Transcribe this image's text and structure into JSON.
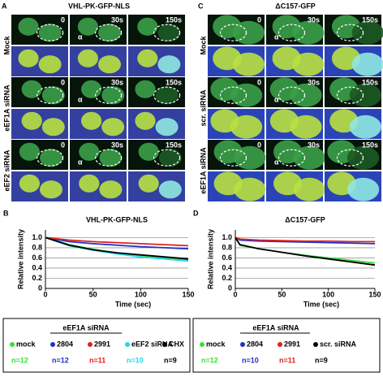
{
  "panels": [
    {
      "label": "A",
      "title": "VHL-PK-GFP-NLS",
      "times": [
        "0",
        "30s",
        "150s"
      ],
      "rows": [
        "Mock",
        "eEF1A siRNA",
        "eEF2 siRNA"
      ],
      "marker": "α"
    },
    {
      "label": "C",
      "title": "ΔC157-GFP",
      "times": [
        "0",
        "30s",
        "150s"
      ],
      "rows": [
        "Mock",
        "scr. siRNA",
        "eEF1A siRNA"
      ],
      "marker": "α"
    }
  ],
  "chart_data": [
    {
      "label": "B",
      "type": "line",
      "title": "VHL-PK-GFP-NLS",
      "x_label": "Time (sec)",
      "y_label": "Relative intensity",
      "x": [
        0,
        25,
        50,
        75,
        100,
        125,
        150
      ],
      "xlim": [
        0,
        150
      ],
      "xticks": [
        0,
        50,
        100,
        150
      ],
      "ylim": [
        0,
        1.15
      ],
      "yticks": [
        0,
        0.2,
        0.4,
        0.6,
        0.8,
        {
          "value": 1,
          "label": "1.0"
        }
      ],
      "grid": true,
      "legend_group": "eEF1A siRNA",
      "series": [
        {
          "name": "mock",
          "color": "#3ddc3d",
          "n_label": "n=12",
          "values": [
            1.0,
            0.86,
            0.77,
            0.7,
            0.65,
            0.6,
            0.56
          ]
        },
        {
          "name": "2804",
          "color": "#1f2fd0",
          "n_label": "n=12",
          "values": [
            1.0,
            0.92,
            0.88,
            0.85,
            0.82,
            0.8,
            0.78
          ]
        },
        {
          "name": "2991",
          "color": "#e0201a",
          "n_label": "n=11",
          "values": [
            1.0,
            0.95,
            0.92,
            0.9,
            0.88,
            0.86,
            0.84
          ]
        },
        {
          "name": "eEF2 siRNA",
          "color": "#22d8e8",
          "n_label": "n=10",
          "values": [
            1.0,
            0.84,
            0.75,
            0.68,
            0.62,
            0.58,
            0.54
          ]
        },
        {
          "name": "CHX",
          "color": "#000000",
          "n_label": "n=9",
          "values": [
            1.0,
            0.85,
            0.76,
            0.7,
            0.66,
            0.62,
            0.58
          ]
        }
      ]
    },
    {
      "label": "D",
      "type": "line",
      "title": "ΔC157-GFP",
      "x_label": "Time (sec)",
      "y_label": "Relative intensity",
      "x": [
        0,
        5,
        25,
        50,
        75,
        100,
        125,
        150
      ],
      "xlim": [
        0,
        150
      ],
      "xticks": [
        0,
        50,
        100,
        150
      ],
      "ylim": [
        0,
        1.15
      ],
      "yticks": [
        0,
        0.2,
        0.4,
        0.6,
        0.8,
        {
          "value": 1,
          "label": "1.0"
        }
      ],
      "grid": true,
      "legend_group": "eEF1A siRNA",
      "series": [
        {
          "name": "mock",
          "color": "#3ddc3d",
          "n_label": "n=12",
          "values": [
            1.0,
            0.85,
            0.78,
            0.71,
            0.65,
            0.6,
            0.55,
            0.5
          ]
        },
        {
          "name": "2804",
          "color": "#1f2fd0",
          "n_label": "n=10",
          "values": [
            1.0,
            0.95,
            0.93,
            0.92,
            0.91,
            0.9,
            0.89,
            0.88
          ]
        },
        {
          "name": "2991",
          "color": "#e0201a",
          "n_label": "n=11",
          "values": [
            1.0,
            0.97,
            0.95,
            0.94,
            0.93,
            0.93,
            0.92,
            0.92
          ]
        },
        {
          "name": "scr. siRNA",
          "color": "#000000",
          "n_label": "n=9",
          "values": [
            1.0,
            0.86,
            0.78,
            0.71,
            0.64,
            0.58,
            0.52,
            0.46
          ]
        }
      ]
    }
  ]
}
